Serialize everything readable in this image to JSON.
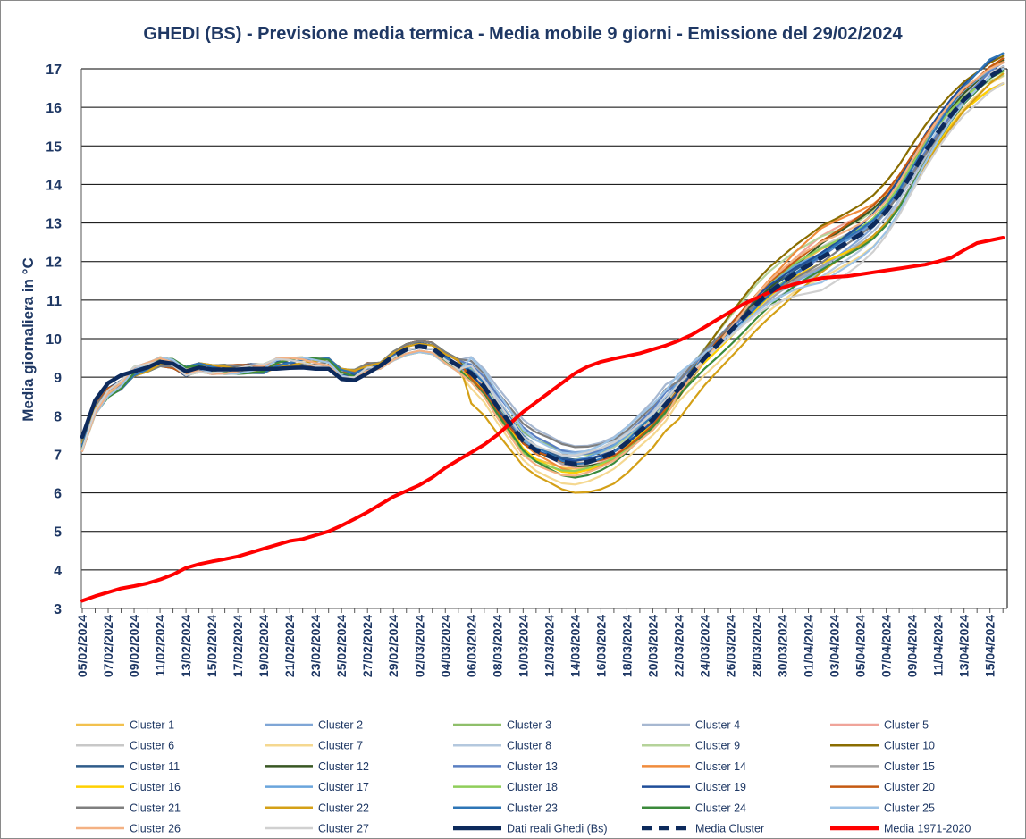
{
  "chart_data": {
    "type": "line",
    "title": "GHEDI (BS) -    Previsione media termica - Media mobile 9 giorni - Emissione del 29/02/2024",
    "ylabel": "Media giornaliera in °C",
    "ylim": [
      3,
      17
    ],
    "yticks": [
      3,
      4,
      5,
      6,
      7,
      8,
      9,
      10,
      11,
      12,
      13,
      14,
      15,
      16,
      17
    ],
    "grid": "horizontal",
    "legend_position": "bottom",
    "x_start": "05/02/2024",
    "x_days": 72,
    "x_tick_labels": [
      "05/02/2024",
      "07/02/2024",
      "09/02/2024",
      "11/02/2024",
      "13/02/2024",
      "15/02/2024",
      "17/02/2024",
      "19/02/2024",
      "21/02/2024",
      "23/02/2024",
      "25/02/2024",
      "27/02/2024",
      "29/02/2024",
      "02/03/2024",
      "04/03/2024",
      "06/03/2024",
      "08/03/2024",
      "10/03/2024",
      "12/03/2024",
      "14/03/2024",
      "16/03/2024",
      "18/03/2024",
      "20/03/2024",
      "22/03/2024",
      "24/03/2024",
      "26/03/2024",
      "28/03/2024",
      "30/03/2024",
      "01/04/2024",
      "03/04/2024",
      "05/04/2024",
      "07/04/2024",
      "09/04/2024",
      "11/04/2024",
      "13/04/2024",
      "15/04/2024"
    ],
    "clusters": [
      {
        "name": "Cluster 1",
        "color": "#f2c14e",
        "ranges": [
          "dip",
          -0.2,
          0.0,
          "rise",
          0.3,
          -0.3
        ]
      },
      {
        "name": "Cluster 2",
        "color": "#7fa6d6",
        "ranges": [
          "dip",
          0.1,
          0.0,
          "rise",
          -0.2,
          0.1
        ]
      },
      {
        "name": "Cluster 3",
        "color": "#8fbf6a",
        "ranges": [
          "dip",
          0.0,
          0.1,
          "rise",
          0.1,
          0.0
        ]
      },
      {
        "name": "Cluster 4",
        "color": "#a7b8d1",
        "ranges": [
          "dip",
          0.3,
          0.0,
          "rise",
          -0.4,
          0.2
        ]
      },
      {
        "name": "Cluster 5",
        "color": "#f0a49a",
        "ranges": [
          "dip",
          -0.1,
          0.0,
          "rise",
          0.5,
          0.1
        ]
      },
      {
        "name": "Cluster 6",
        "color": "#c8c8c8",
        "ranges": [
          "dip",
          0.2,
          0.0,
          "rise",
          0.2,
          0.0
        ]
      },
      {
        "name": "Cluster 7",
        "color": "#f5d890",
        "ranges": [
          "dip",
          -0.3,
          0.0,
          "rise",
          -0.6,
          -0.2
        ]
      },
      {
        "name": "Cluster 8",
        "color": "#b4c8de",
        "ranges": [
          "dip",
          0.4,
          0.0,
          "rise",
          -0.5,
          0.3
        ]
      },
      {
        "name": "Cluster 9",
        "color": "#b5d39a",
        "ranges": [
          "dip",
          0.2,
          0.0,
          "rise",
          0.6,
          -0.1
        ]
      },
      {
        "name": "Cluster 10",
        "color": "#8a6d00",
        "ranges": [
          "dip",
          0.0,
          0.0,
          "rise",
          0.9,
          0.4
        ]
      },
      {
        "name": "Cluster 11",
        "color": "#2f5c8a",
        "ranges": [
          "dip",
          -0.1,
          0.0,
          "rise",
          0.2,
          0.3
        ]
      },
      {
        "name": "Cluster 12",
        "color": "#385723",
        "ranges": [
          "dip",
          -0.3,
          0.0,
          "rise",
          0.4,
          0.2
        ]
      },
      {
        "name": "Cluster 13",
        "color": "#5a7fc2",
        "ranges": [
          "dip",
          0.1,
          0.0,
          "rise",
          0.0,
          0.1
        ]
      },
      {
        "name": "Cluster 14",
        "color": "#f08c3c",
        "ranges": [
          "dip",
          -0.2,
          0.0,
          "rise",
          0.7,
          0.1
        ]
      },
      {
        "name": "Cluster 15",
        "color": "#a5a5a5",
        "ranges": [
          "dip",
          0.1,
          0.0,
          "rise",
          -0.3,
          -0.1
        ]
      },
      {
        "name": "Cluster 16",
        "color": "#ffd000",
        "ranges": [
          "dip",
          0.0,
          0.0,
          "rise",
          -0.2,
          -0.4
        ]
      },
      {
        "name": "Cluster 17",
        "color": "#6aa5dc",
        "ranges": [
          "dip",
          0.3,
          0.0,
          "rise",
          0.1,
          0.2
        ]
      },
      {
        "name": "Cluster 18",
        "color": "#8fce5a",
        "ranges": [
          "dip",
          -0.1,
          0.0,
          "rise",
          0.3,
          0.0
        ]
      },
      {
        "name": "Cluster 19",
        "color": "#1f4e99",
        "ranges": [
          "dip",
          0.0,
          0.0,
          "rise",
          0.2,
          0.5
        ]
      },
      {
        "name": "Cluster 20",
        "color": "#c55a11",
        "ranges": [
          "dip",
          -0.2,
          0.0,
          "rise",
          0.5,
          0.3
        ]
      },
      {
        "name": "Cluster 21",
        "color": "#7f7f7f",
        "ranges": [
          "dip",
          0.2,
          0.0,
          "rise",
          -0.1,
          0.0
        ]
      },
      {
        "name": "Cluster 22",
        "color": "#d4a017",
        "ranges": [
          "dip",
          -0.9,
          0.0,
          "rise",
          -0.4,
          -0.2
        ]
      },
      {
        "name": "Cluster 23",
        "color": "#2e75b6",
        "ranges": [
          "dip",
          0.0,
          0.0,
          "rise",
          0.0,
          0.4
        ]
      },
      {
        "name": "Cluster 24",
        "color": "#3b8a3b",
        "ranges": [
          "dip",
          -0.2,
          0.0,
          "rise",
          -0.4,
          -0.1
        ]
      },
      {
        "name": "Cluster 25",
        "color": "#9dc3e6",
        "ranges": [
          "dip",
          0.5,
          0.0,
          "rise",
          -0.7,
          0.0
        ]
      },
      {
        "name": "Cluster 26",
        "color": "#f4b183",
        "ranges": [
          "dip",
          -0.1,
          0.0,
          "rise",
          0.4,
          0.2
        ]
      },
      {
        "name": "Cluster 27",
        "color": "#d0d0d0",
        "ranges": [
          "dip",
          0.3,
          0.0,
          "rise",
          -0.8,
          -0.3
        ]
      }
    ],
    "series_observed": {
      "name": "Dati reali Ghedi (Bs)",
      "color": "#0d2a5c",
      "values": [
        7.45,
        8.4,
        8.85,
        9.05,
        9.15,
        9.25,
        9.4,
        9.35,
        9.15,
        9.25,
        9.2,
        9.2,
        9.2,
        9.22,
        9.22,
        9.22,
        9.24,
        9.25,
        9.22,
        9.22,
        8.95,
        8.92,
        9.1,
        9.3
      ]
    },
    "series_mean": {
      "name": "Media Cluster",
      "color": "#0d2a5c",
      "start_index": 23,
      "values": [
        9.3,
        9.55,
        9.72,
        9.8,
        9.75,
        9.5,
        9.3,
        9.1,
        8.75,
        8.25,
        7.8,
        7.35,
        7.1,
        6.95,
        6.8,
        6.75,
        6.8,
        6.9,
        7.05,
        7.3,
        7.6,
        7.9,
        8.3,
        8.7,
        9.1,
        9.5,
        9.85,
        10.2,
        10.55,
        10.9,
        11.2,
        11.45,
        11.7,
        11.9,
        12.1,
        12.3,
        12.5,
        12.7,
        12.95,
        13.3,
        13.75,
        14.3,
        14.85,
        15.35,
        15.8,
        16.2,
        16.5,
        16.8,
        17.0
      ]
    },
    "series_climate": {
      "name": "Media 1971-2020",
      "color": "#ff0000",
      "values": [
        3.2,
        3.32,
        3.42,
        3.52,
        3.58,
        3.65,
        3.75,
        3.88,
        4.05,
        4.15,
        4.22,
        4.28,
        4.35,
        4.45,
        4.55,
        4.65,
        4.75,
        4.8,
        4.9,
        5.0,
        5.15,
        5.32,
        5.5,
        5.7,
        5.9,
        6.05,
        6.2,
        6.4,
        6.65,
        6.85,
        7.05,
        7.25,
        7.5,
        7.8,
        8.1,
        8.35,
        8.6,
        8.85,
        9.1,
        9.28,
        9.4,
        9.48,
        9.55,
        9.62,
        9.72,
        9.82,
        9.95,
        10.1,
        10.3,
        10.5,
        10.7,
        10.9,
        11.05,
        11.2,
        11.32,
        11.42,
        11.5,
        11.57,
        11.6,
        11.62,
        11.67,
        11.72,
        11.77,
        11.82,
        11.87,
        11.92,
        12.0,
        12.1,
        12.3,
        12.48,
        12.55,
        12.62
      ]
    }
  }
}
